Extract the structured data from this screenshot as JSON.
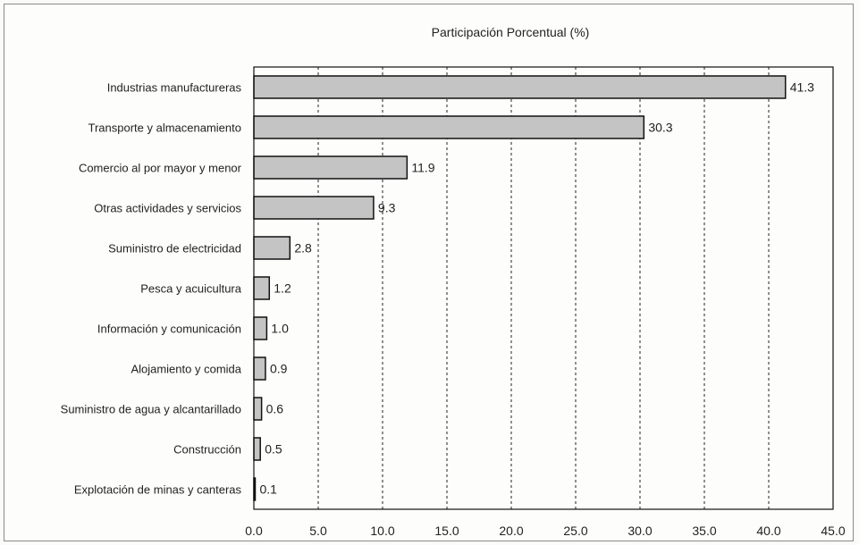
{
  "chart_data": {
    "type": "bar",
    "orientation": "horizontal",
    "title": "Participación Porcentual (%)",
    "categories": [
      "Industrias manufactureras",
      "Transporte y almacenamiento",
      "Comercio al por mayor y menor",
      "Otras actividades y servicios",
      "Suministro de electricidad",
      "Pesca y acuicultura",
      "Información y comunicación",
      "Alojamiento y comida",
      "Suministro de agua y alcantarillado",
      "Construcción",
      "Explotación de minas y canteras"
    ],
    "values": [
      41.3,
      30.3,
      11.9,
      9.3,
      2.8,
      1.2,
      1.0,
      0.9,
      0.6,
      0.5,
      0.1
    ],
    "value_labels": [
      "41.3",
      "30.3",
      "11.9",
      "9.3",
      "2.8",
      "1.2",
      "1.0",
      "0.9",
      "0.6",
      "0.5",
      "0.1"
    ],
    "xlim": [
      0,
      45
    ],
    "x_ticks": [
      "0.0",
      "5.0",
      "10.0",
      "15.0",
      "20.0",
      "25.0",
      "30.0",
      "35.0",
      "40.0",
      "45.0"
    ],
    "grid": "vertical dashed",
    "legend": "none",
    "colors": {
      "bar_fill": "#c4c4c4",
      "bar_stroke": "#111111",
      "grid": "#222222"
    }
  }
}
